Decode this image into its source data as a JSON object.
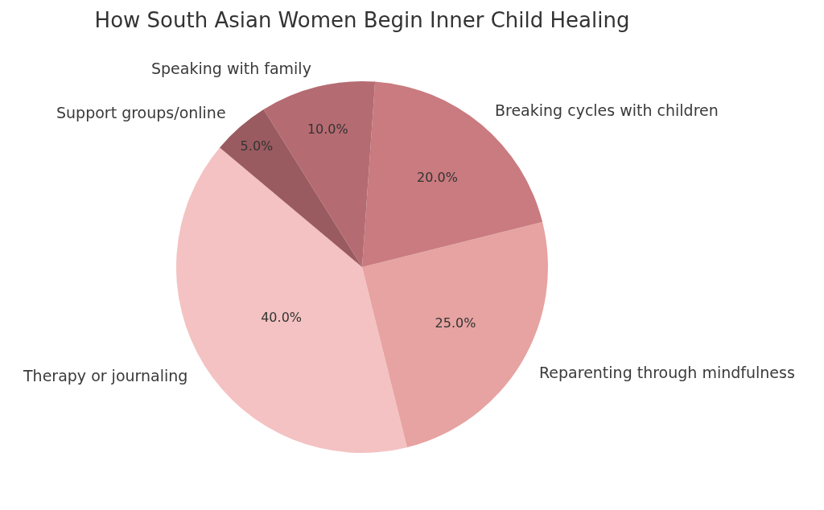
{
  "chart_data": {
    "type": "pie",
    "title": "How South Asian Women Begin Inner Child Healing",
    "categories": [
      "Therapy or journaling",
      "Reparenting through mindfulness",
      "Breaking cycles with children",
      "Speaking with family",
      "Support groups/online"
    ],
    "values": [
      40,
      25,
      20,
      10,
      5
    ],
    "colors": [
      "#f4c2c2",
      "#e6a3a1",
      "#c97b7f",
      "#b56b72",
      "#9a5b60"
    ],
    "value_labels": [
      "40.0%",
      "25.0%",
      "20.0%",
      "10.0%",
      "5.0%"
    ]
  }
}
